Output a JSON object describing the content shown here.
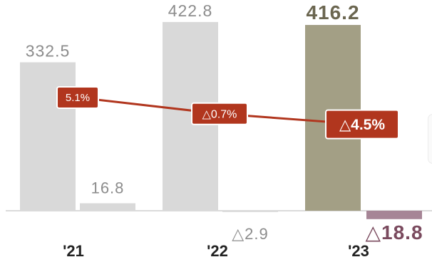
{
  "chart_data": {
    "type": "bar",
    "categories": [
      "'21",
      "'22",
      "'23"
    ],
    "series": [
      {
        "values": [
          332.5,
          422.8,
          416.2
        ],
        "labels": [
          "332.5",
          "422.8",
          "416.2"
        ]
      },
      {
        "values": [
          16.8,
          -2.9,
          -18.8
        ],
        "labels": [
          "16.8",
          "△2.9",
          "△18.8"
        ]
      },
      {
        "type": "line",
        "values": [
          5.1,
          -0.7,
          -4.5
        ],
        "labels": [
          "5.1%",
          "△0.7%",
          "△4.5%"
        ]
      }
    ],
    "highlight_category": "'23",
    "colors": {
      "bar": "#d9d9d9",
      "bar_highlight": "#a39f85",
      "bar_negative_highlight": "#a68596",
      "line": "#b1361e",
      "label": "#8c8c8c",
      "label_highlight": "#6b6650",
      "label_negative_highlight": "#7a4a5e",
      "axis": "#cfcfcf"
    }
  }
}
